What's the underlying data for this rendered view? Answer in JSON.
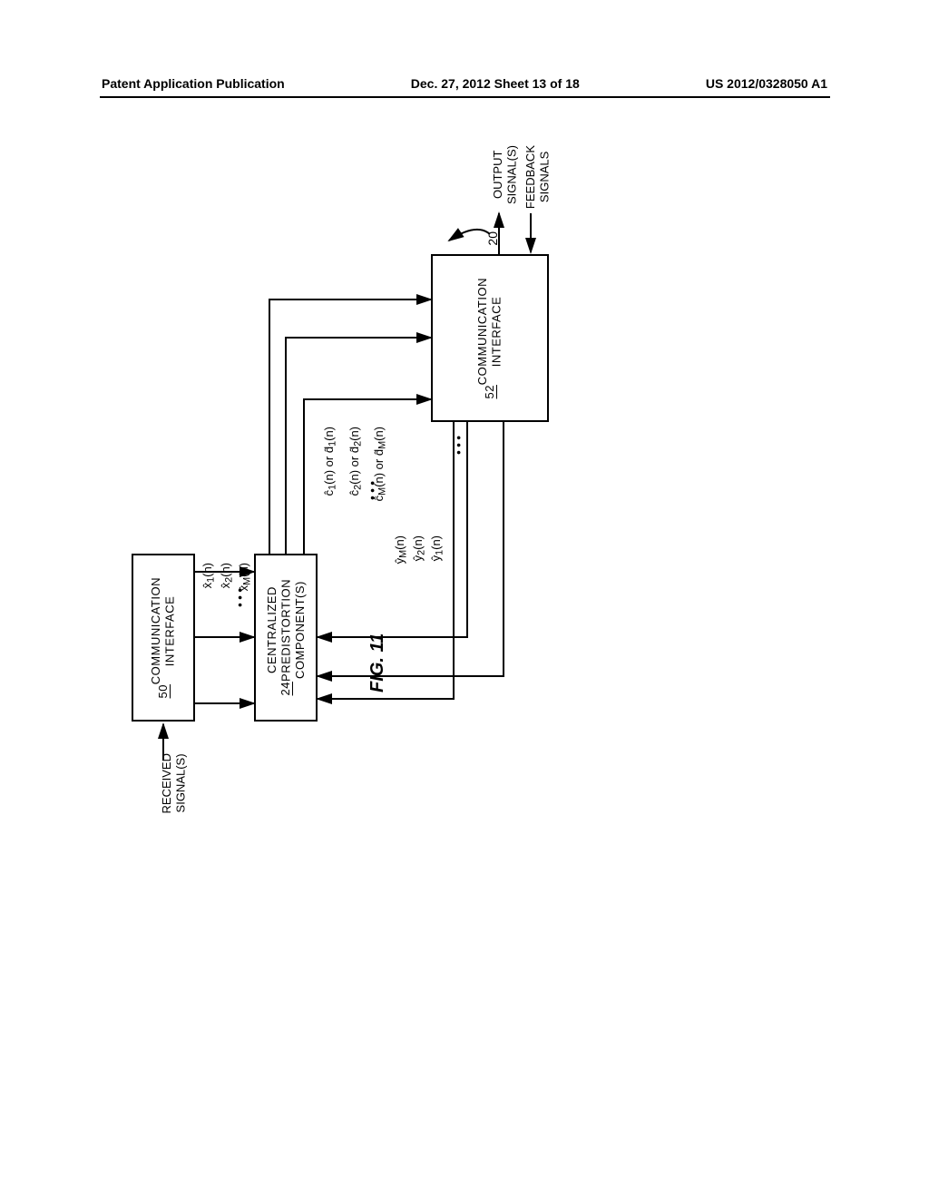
{
  "header": {
    "left": "Patent Application Publication",
    "mid": "Dec. 27, 2012  Sheet 13 of 18",
    "right": "US 2012/0328050 A1"
  },
  "figure_label": "FIG. 11",
  "ref_num": "20",
  "labels": {
    "received": "RECEIVED\nSIGNAL(S)",
    "output": "OUTPUT\nSIGNAL(S)",
    "feedback": "FEEDBACK\nSIGNALS"
  },
  "boxes": {
    "ci50": {
      "title": "COMMUNICATION\nINTERFACE",
      "num": "50"
    },
    "cpc24": {
      "title": "CENTRALIZED\nPREDISTORTION\nCOMPONENT(S)",
      "num": "24"
    },
    "ci52": {
      "title": "COMMUNICATION\nINTERFACE",
      "num": "52"
    }
  },
  "signals": {
    "x1": "x̂₁(n)",
    "x2": "x̂₂(n)",
    "xM": "x̂ₘ(n)",
    "c1": "ĉ₁(n) or d̂₁(n)",
    "c2": "ĉ₂(n) or d̂₂(n)",
    "cM": "ĉₘ(n) or d̂ₘ(n)",
    "yM": "ŷₘ(n)",
    "y2": "ŷ₂(n)",
    "y1": "ŷ₁(n)",
    "xMdisp": "x̂_M(n)",
    "cMdisp": "ĉ_M(n) or d̂_M(n)",
    "yMdisp": "ŷ_M(n)"
  },
  "style": {
    "stroke": "#000000",
    "stroke_width": 2,
    "bg": "#ffffff"
  }
}
